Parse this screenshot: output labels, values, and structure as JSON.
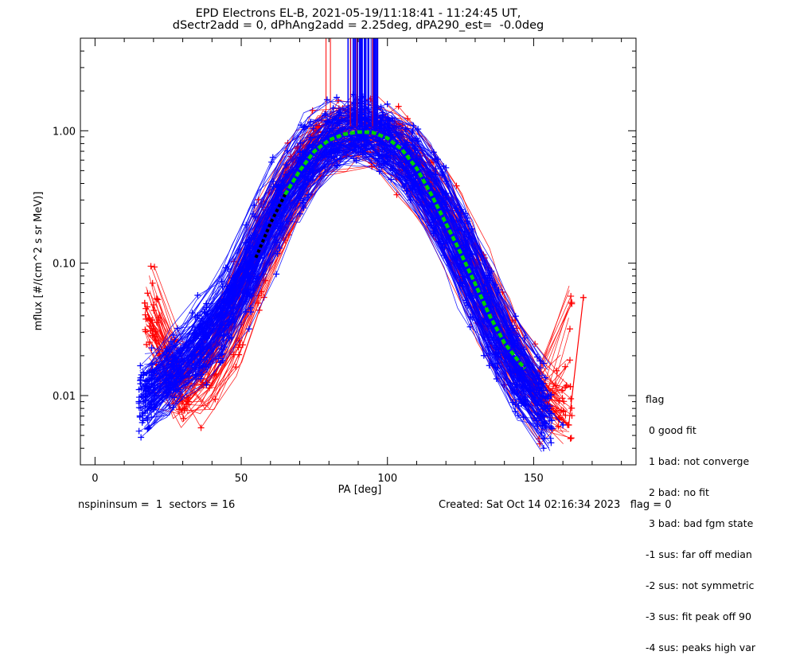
{
  "chart_data": {
    "type": "scatter",
    "title": "EPD Electrons EL-B, 2021-05-19/11:18:41 - 11:24:45 UT,",
    "subtitle": "dSectr2add = 0, dPhAng2add = 2.25deg, dPA290_est=  -0.0deg",
    "xlabel": "PA [deg]",
    "ylabel": "mflux [#/(cm^2 s sr MeV)]",
    "xlim": [
      -5,
      185
    ],
    "ylim": [
      0.003,
      5
    ],
    "yscale": "log",
    "x_ticks": [
      {
        "value": 0,
        "label": "0"
      },
      {
        "value": 50,
        "label": "50"
      },
      {
        "value": 100,
        "label": "100"
      },
      {
        "value": 150,
        "label": "150"
      }
    ],
    "y_ticks": [
      {
        "value": 0.01,
        "label": "0.01"
      },
      {
        "value": 0.1,
        "label": "0.10"
      },
      {
        "value": 1,
        "label": "1.00"
      }
    ],
    "colors": {
      "blue_data": "#0000ff",
      "red_data": "#ff0000",
      "fit_curve": "#00d000",
      "fit_curve_dark": "#000000"
    },
    "series": [
      {
        "color": "blue",
        "marker": "plus",
        "x": [
          15,
          20,
          24,
          28,
          33,
          38,
          44,
          50,
          56,
          62,
          68,
          74,
          79,
          84,
          90,
          96,
          101,
          107,
          113,
          119,
          125,
          131,
          137,
          143,
          149,
          155,
          160
        ],
        "y": [
          0.009,
          0.011,
          0.013,
          0.016,
          0.02,
          0.028,
          0.04,
          0.07,
          0.13,
          0.25,
          0.42,
          0.65,
          0.85,
          0.95,
          1.0,
          0.97,
          0.85,
          0.6,
          0.4,
          0.25,
          0.13,
          0.065,
          0.032,
          0.018,
          0.011,
          0.008,
          0.006
        ]
      },
      {
        "color": "red",
        "marker": "plus",
        "x": [
          17,
          22,
          27,
          32,
          37,
          43,
          49,
          55,
          61,
          67,
          73,
          78,
          84,
          90,
          96,
          102,
          108,
          114,
          120,
          126,
          132,
          138,
          144,
          150,
          156,
          162,
          167
        ],
        "y": [
          0.05,
          0.02,
          0.012,
          0.009,
          0.012,
          0.02,
          0.045,
          0.1,
          0.2,
          0.38,
          0.6,
          0.8,
          0.93,
          1.0,
          0.95,
          0.82,
          0.6,
          0.38,
          0.22,
          0.12,
          0.06,
          0.03,
          0.018,
          0.01,
          0.008,
          0.006,
          0.055
        ]
      },
      {
        "color": "green",
        "marker": "dashed-line",
        "x": [
          55,
          60,
          65,
          70,
          75,
          80,
          85,
          90,
          95,
          100,
          105,
          110,
          115,
          120,
          125,
          130,
          135,
          140,
          145,
          147
        ],
        "y": [
          0.11,
          0.2,
          0.33,
          0.5,
          0.7,
          0.85,
          0.94,
          0.98,
          0.97,
          0.88,
          0.72,
          0.52,
          0.33,
          0.2,
          0.12,
          0.07,
          0.04,
          0.025,
          0.018,
          0.016
        ]
      }
    ],
    "legend": {
      "title": "flag",
      "entries": [
        " 0 good fit",
        " 1 bad: not converge",
        " 2 bad: no fit",
        " 3 bad: bad fgm state",
        "-1 sus: far off median",
        "-2 sus: not symmetric",
        "-3 sus: fit peak off 90",
        "-4 sus: peaks high var"
      ]
    }
  },
  "footer": {
    "left": "nspininsum =  1  sectors = 16",
    "right": "Created: Sat Oct 14 02:16:34 2023   flag = 0"
  }
}
